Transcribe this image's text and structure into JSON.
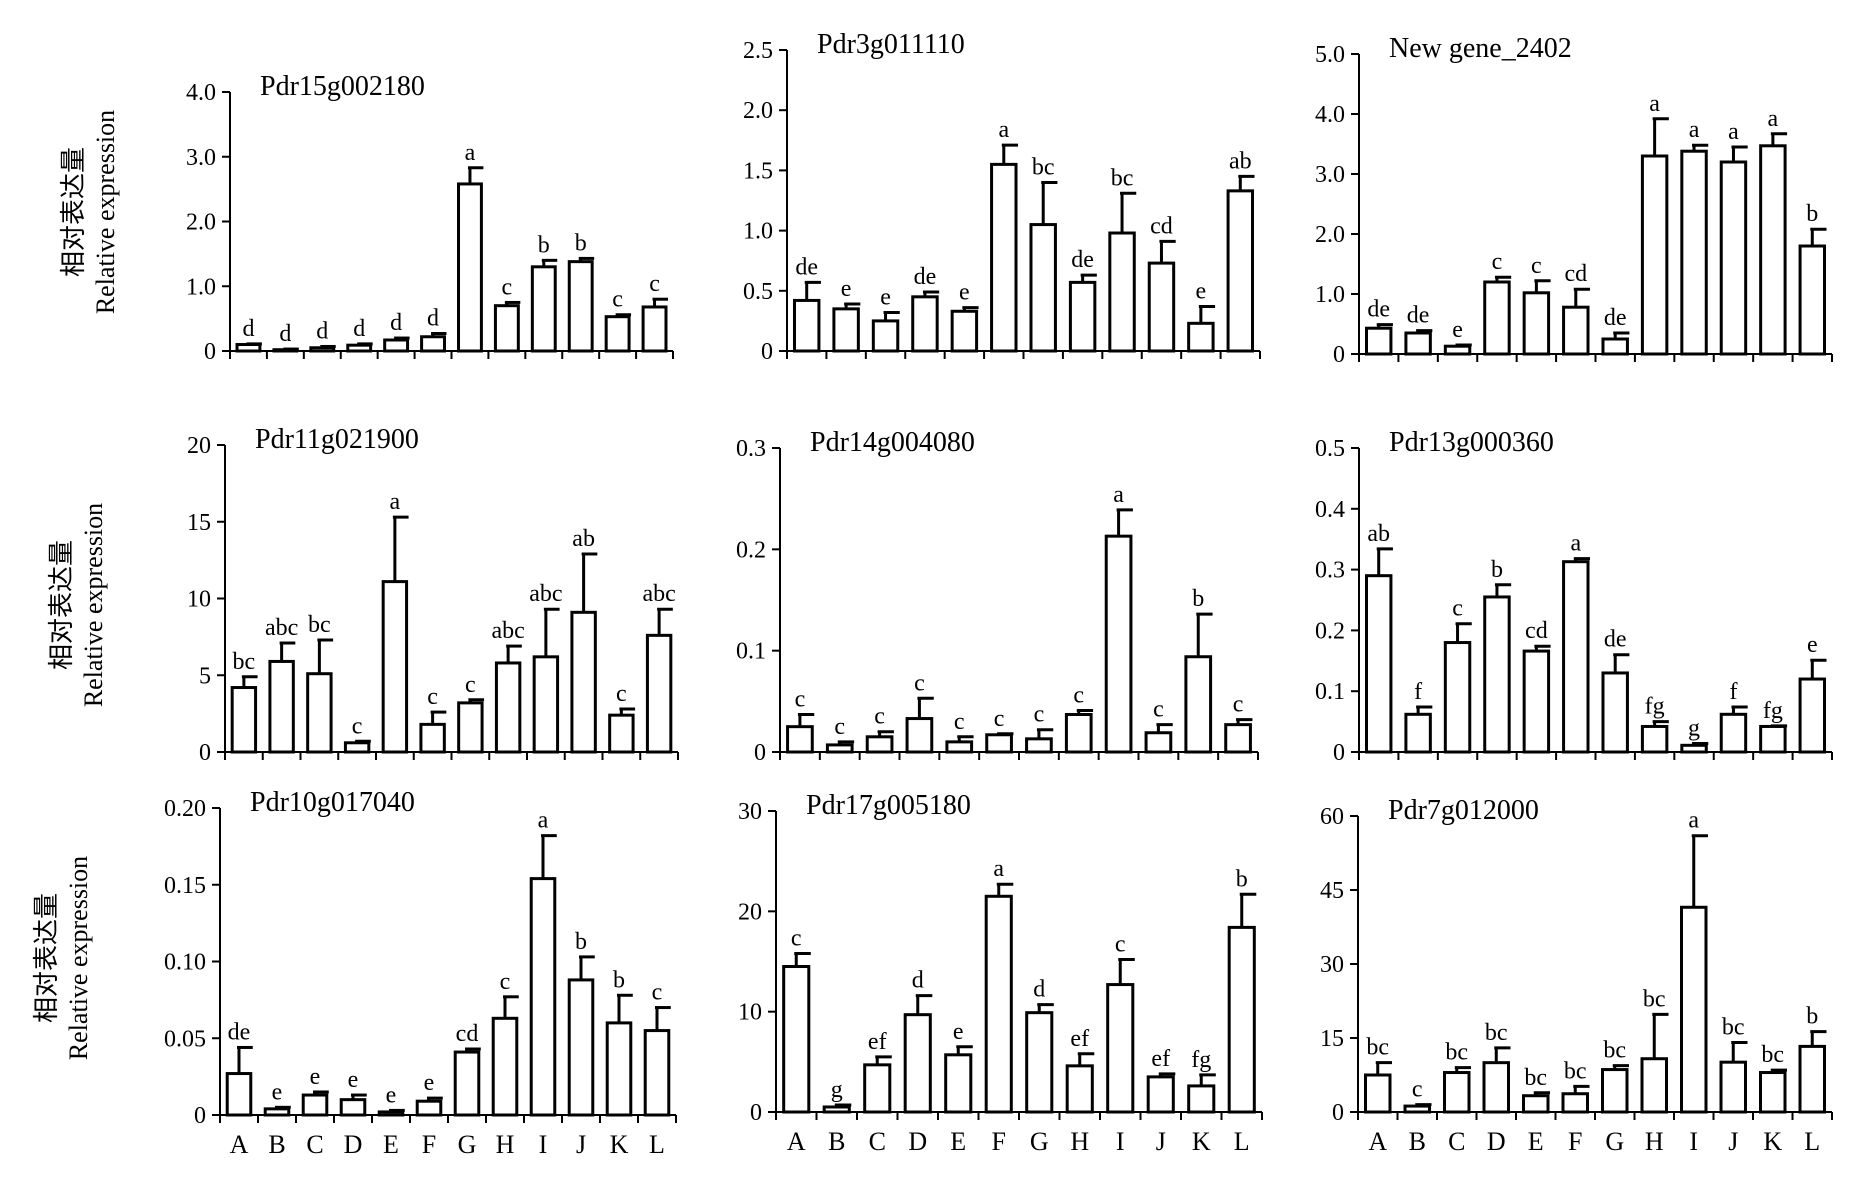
{
  "figure": {
    "ylabel_cn": "相对表达量",
    "ylabel_en": "Relative expression"
  },
  "chart_data": [
    {
      "type": "bar",
      "title": "Pdr15g002180",
      "categories": [
        "A",
        "B",
        "C",
        "D",
        "E",
        "F",
        "G",
        "H",
        "I",
        "J",
        "K",
        "L"
      ],
      "show_xticklabels": false,
      "ylim": [
        0,
        4
      ],
      "yticks": [
        0,
        1,
        2,
        3,
        4
      ],
      "ytick_labels": [
        "0",
        "1.0",
        "2.0",
        "3.0",
        "4.0"
      ],
      "values": [
        0.1,
        0.02,
        0.05,
        0.09,
        0.17,
        0.22,
        2.58,
        0.7,
        1.3,
        1.38,
        0.53,
        0.68
      ],
      "errors": [
        0.01,
        0.01,
        0.02,
        0.02,
        0.03,
        0.05,
        0.25,
        0.05,
        0.1,
        0.05,
        0.03,
        0.12
      ],
      "letters": [
        "d",
        "d",
        "d",
        "d",
        "d",
        "d",
        "a",
        "c",
        "b",
        "b",
        "c",
        "c"
      ]
    },
    {
      "type": "bar",
      "title": "Pdr3g011110",
      "categories": [
        "A",
        "B",
        "C",
        "D",
        "E",
        "F",
        "G",
        "H",
        "I",
        "J",
        "K",
        "L"
      ],
      "show_xticklabels": false,
      "ylim": [
        0,
        2.5
      ],
      "yticks": [
        0,
        0.5,
        1.0,
        1.5,
        2.0,
        2.5
      ],
      "ytick_labels": [
        "0",
        "0.5",
        "1.0",
        "1.5",
        "2.0",
        "2.5"
      ],
      "values": [
        0.42,
        0.35,
        0.25,
        0.45,
        0.33,
        1.55,
        1.05,
        0.57,
        0.98,
        0.73,
        0.23,
        1.33
      ],
      "errors": [
        0.15,
        0.04,
        0.07,
        0.04,
        0.03,
        0.16,
        0.35,
        0.06,
        0.33,
        0.18,
        0.14,
        0.12
      ],
      "letters": [
        "de",
        "e",
        "e",
        "de",
        "e",
        "a",
        "bc",
        "de",
        "bc",
        "cd",
        "e",
        "ab"
      ]
    },
    {
      "type": "bar",
      "title": "New gene_2402",
      "categories": [
        "A",
        "B",
        "C",
        "D",
        "E",
        "F",
        "G",
        "H",
        "I",
        "J",
        "K",
        "L"
      ],
      "show_xticklabels": false,
      "ylim": [
        0,
        5
      ],
      "yticks": [
        0,
        1,
        2,
        3,
        4,
        5
      ],
      "ytick_labels": [
        "0",
        "1.0",
        "2.0",
        "3.0",
        "4.0",
        "5.0"
      ],
      "values": [
        0.43,
        0.35,
        0.13,
        1.2,
        1.02,
        0.78,
        0.25,
        3.3,
        3.38,
        3.2,
        3.47,
        1.8
      ],
      "errors": [
        0.06,
        0.04,
        0.02,
        0.08,
        0.2,
        0.3,
        0.1,
        0.62,
        0.1,
        0.25,
        0.2,
        0.28
      ],
      "letters": [
        "de",
        "de",
        "e",
        "c",
        "c",
        "cd",
        "de",
        "a",
        "a",
        "a",
        "a",
        "b"
      ]
    },
    {
      "type": "bar",
      "title": "Pdr11g021900",
      "categories": [
        "A",
        "B",
        "C",
        "D",
        "E",
        "F",
        "G",
        "H",
        "I",
        "J",
        "K",
        "L"
      ],
      "show_xticklabels": false,
      "ylim": [
        0,
        20
      ],
      "yticks": [
        0,
        5,
        10,
        15,
        20
      ],
      "ytick_labels": [
        "0",
        "5",
        "10",
        "15",
        "20"
      ],
      "values": [
        4.2,
        5.9,
        5.1,
        0.6,
        11.1,
        1.8,
        3.2,
        5.8,
        6.2,
        9.1,
        2.4,
        7.6
      ],
      "errors": [
        0.7,
        1.2,
        2.2,
        0.1,
        4.2,
        0.8,
        0.2,
        1.1,
        3.1,
        3.8,
        0.4,
        1.7
      ],
      "letters": [
        "bc",
        "abc",
        "bc",
        "c",
        "a",
        "c",
        "c",
        "abc",
        "abc",
        "ab",
        "c",
        "abc"
      ]
    },
    {
      "type": "bar",
      "title": "Pdr14g004080",
      "categories": [
        "A",
        "B",
        "C",
        "D",
        "E",
        "F",
        "G",
        "H",
        "I",
        "J",
        "K",
        "L"
      ],
      "show_xticklabels": false,
      "ylim": [
        0,
        0.3
      ],
      "yticks": [
        0,
        0.1,
        0.2,
        0.3
      ],
      "ytick_labels": [
        "0",
        "0.1",
        "0.2",
        "0.3"
      ],
      "values": [
        0.025,
        0.007,
        0.015,
        0.033,
        0.01,
        0.017,
        0.013,
        0.037,
        0.213,
        0.019,
        0.094,
        0.027
      ],
      "errors": [
        0.012,
        0.003,
        0.005,
        0.02,
        0.005,
        0.001,
        0.009,
        0.004,
        0.026,
        0.008,
        0.042,
        0.005
      ],
      "letters": [
        "c",
        "c",
        "c",
        "c",
        "c",
        "c",
        "c",
        "c",
        "a",
        "c",
        "b",
        "c"
      ]
    },
    {
      "type": "bar",
      "title": "Pdr13g000360",
      "categories": [
        "A",
        "B",
        "C",
        "D",
        "E",
        "F",
        "G",
        "H",
        "I",
        "J",
        "K",
        "L"
      ],
      "show_xticklabels": false,
      "ylim": [
        0,
        0.5
      ],
      "yticks": [
        0,
        0.1,
        0.2,
        0.3,
        0.4,
        0.5
      ],
      "ytick_labels": [
        "0",
        "0.1",
        "0.2",
        "0.3",
        "0.4",
        "0.5"
      ],
      "values": [
        0.29,
        0.062,
        0.18,
        0.255,
        0.166,
        0.313,
        0.13,
        0.042,
        0.011,
        0.062,
        0.042,
        0.12
      ],
      "errors": [
        0.044,
        0.012,
        0.031,
        0.02,
        0.008,
        0.005,
        0.03,
        0.008,
        0.003,
        0.012,
        0.001,
        0.031
      ],
      "letters": [
        "ab",
        "f",
        "c",
        "b",
        "cd",
        "a",
        "de",
        "fg",
        "g",
        "f",
        "fg",
        "e"
      ]
    },
    {
      "type": "bar",
      "title": "Pdr10g017040",
      "categories": [
        "A",
        "B",
        "C",
        "D",
        "E",
        "F",
        "G",
        "H",
        "I",
        "J",
        "K",
        "L"
      ],
      "show_xticklabels": true,
      "ylim": [
        0,
        0.2
      ],
      "yticks": [
        0,
        0.05,
        0.1,
        0.15,
        0.2
      ],
      "ytick_labels": [
        "0",
        "0.05",
        "0.10",
        "0.15",
        "0.20"
      ],
      "values": [
        0.027,
        0.004,
        0.013,
        0.01,
        0.002,
        0.009,
        0.041,
        0.063,
        0.154,
        0.088,
        0.06,
        0.055
      ],
      "errors": [
        0.017,
        0.001,
        0.002,
        0.003,
        0.001,
        0.002,
        0.002,
        0.014,
        0.028,
        0.015,
        0.018,
        0.015
      ],
      "letters": [
        "de",
        "e",
        "e",
        "e",
        "e",
        "e",
        "cd",
        "c",
        "a",
        "b",
        "b",
        "c"
      ]
    },
    {
      "type": "bar",
      "title": "Pdr17g005180",
      "categories": [
        "A",
        "B",
        "C",
        "D",
        "E",
        "F",
        "G",
        "H",
        "I",
        "J",
        "K",
        "L"
      ],
      "show_xticklabels": true,
      "ylim": [
        0,
        30
      ],
      "yticks": [
        0,
        10,
        20,
        30
      ],
      "ytick_labels": [
        "0",
        "10",
        "20",
        "30"
      ],
      "values": [
        14.5,
        0.5,
        4.7,
        9.7,
        5.7,
        21.5,
        9.9,
        4.6,
        12.7,
        3.5,
        2.6,
        18.4
      ],
      "errors": [
        1.3,
        0.2,
        0.8,
        1.9,
        0.8,
        1.2,
        0.8,
        1.2,
        2.5,
        0.3,
        1.1,
        3.3
      ],
      "letters": [
        "c",
        "g",
        "ef",
        "d",
        "e",
        "a",
        "d",
        "ef",
        "c",
        "ef",
        "fg",
        "b"
      ]
    },
    {
      "type": "bar",
      "title": "Pdr7g012000",
      "categories": [
        "A",
        "B",
        "C",
        "D",
        "E",
        "F",
        "G",
        "H",
        "I",
        "J",
        "K",
        "L"
      ],
      "show_xticklabels": true,
      "ylim": [
        0,
        60
      ],
      "yticks": [
        0,
        15,
        30,
        45,
        60
      ],
      "ytick_labels": [
        "0",
        "15",
        "30",
        "45",
        "60"
      ],
      "values": [
        7.5,
        1.2,
        8.0,
        10.0,
        3.3,
        3.7,
        8.6,
        10.8,
        41.5,
        10.1,
        8.0,
        13.3
      ],
      "errors": [
        2.5,
        0.3,
        1.0,
        3.0,
        0.6,
        1.5,
        0.8,
        9.0,
        14.5,
        4.0,
        0.5,
        3.0
      ],
      "letters": [
        "bc",
        "c",
        "bc",
        "bc",
        "bc",
        "bc",
        "bc",
        "bc",
        "a",
        "bc",
        "bc",
        "b"
      ]
    }
  ]
}
